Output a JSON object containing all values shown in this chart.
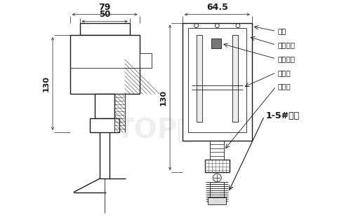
{
  "bg_color": "#ffffff",
  "line_color": "#1a1a1a",
  "dim_color": "#111111",
  "label_color": "#111111",
  "watermark_color": "#cccccc",
  "figsize": [
    5.0,
    3.1
  ],
  "dpi": 100,
  "dim_79": "79",
  "dim_50": "50",
  "dim_64_5": "64.5",
  "dim_130": "130",
  "label_shell": "外壳",
  "label_adj": "调节螺丝",
  "label_micro": "微动开关",
  "label_lever": "杠杆板",
  "label_bellows": "波纹管",
  "label_paddle": "1-5#桨片"
}
